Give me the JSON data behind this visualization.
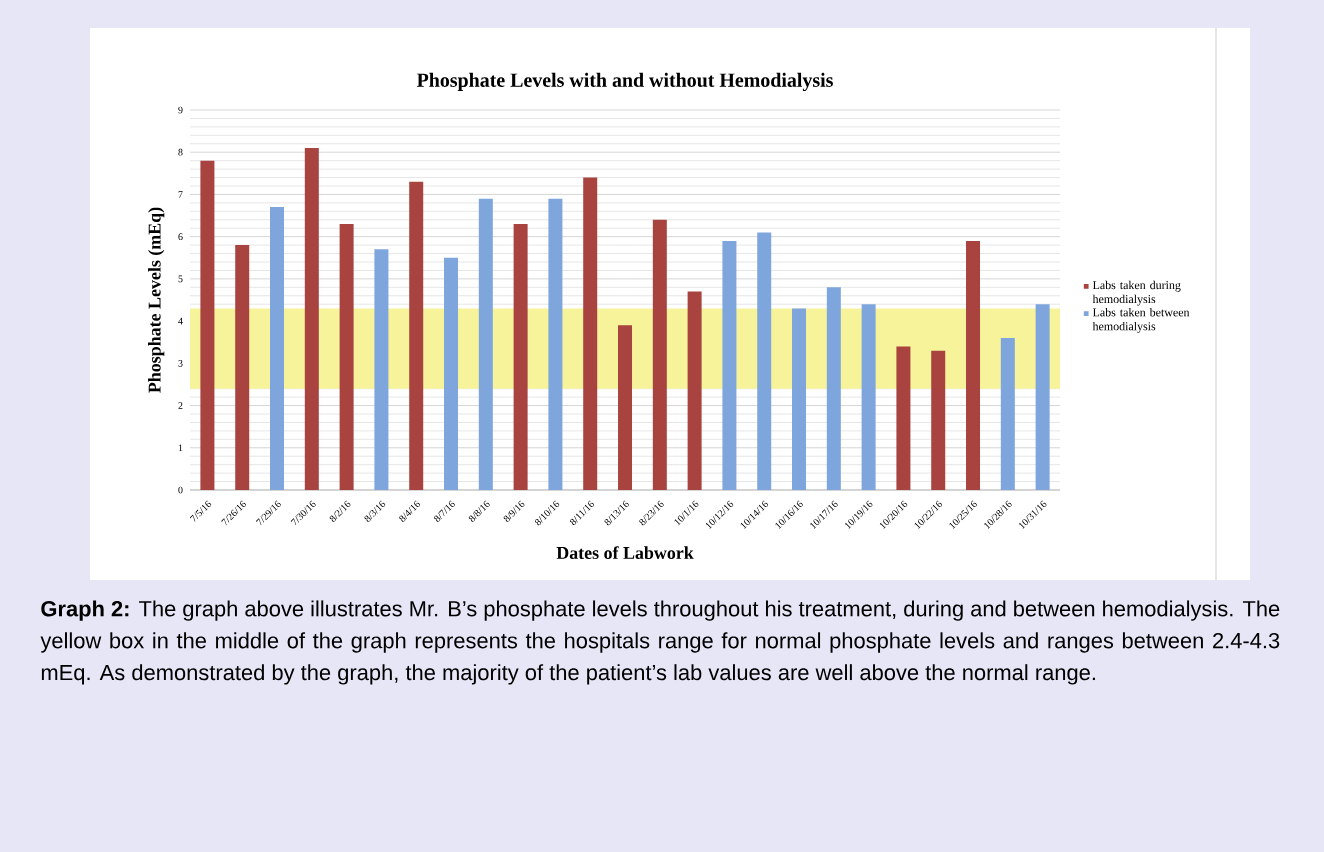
{
  "chart_data": {
    "type": "bar",
    "title": "Phosphate Levels with and without Hemodialysis",
    "xlabel": "Dates of Labwork",
    "ylabel": "Phosphate Levels (mEq)",
    "categories": [
      "7/5/16",
      "7/26/16",
      "7/29/16",
      "7/30/16",
      "8/2/16",
      "8/3/16",
      "8/4/16",
      "8/7/16",
      "8/8/16",
      "8/9/16",
      "8/10/16",
      "8/11/16",
      "8/13/16",
      "8/23/16",
      "10/1/16",
      "10/12/16",
      "10/14/16",
      "10/16/16",
      "10/17/16",
      "10/19/16",
      "10/20/16",
      "10/22/16",
      "10/25/16",
      "10/28/16",
      "10/31/16"
    ],
    "series": [
      {
        "name": "Labs taken during hemodialysis",
        "color": "#a8433f",
        "values": [
          7.8,
          5.8,
          null,
          8.1,
          6.3,
          null,
          7.3,
          null,
          null,
          6.3,
          null,
          7.4,
          3.9,
          6.4,
          4.7,
          null,
          null,
          null,
          null,
          null,
          3.4,
          3.3,
          5.9,
          null,
          null
        ]
      },
      {
        "name": "Labs taken between hemodialysis",
        "color": "#7ea6dc",
        "values": [
          null,
          null,
          6.7,
          null,
          null,
          5.7,
          null,
          5.5,
          6.9,
          null,
          6.9,
          null,
          null,
          null,
          null,
          5.9,
          6.1,
          4.3,
          4.8,
          4.4,
          null,
          null,
          null,
          3.6,
          4.4
        ]
      }
    ],
    "ylim": [
      0,
      9
    ],
    "yticks": [
      0,
      1,
      2,
      3,
      4,
      5,
      6,
      7,
      8,
      9
    ],
    "grid": "y",
    "legend": "right",
    "bands": [
      {
        "axis": "y",
        "from": 2.4,
        "to": 4.3,
        "color": "#f6f39a"
      }
    ],
    "annotations": [
      "**Graph 2:** The graph above illustrates Mr. B’s phosphate levels throughout his treatment, during and between hemodialysis. The yellow box in the middle of the graph represents the hospitals range for normal phosphate levels and ranges between 2.4-4.3 mEq. As demonstrated by the graph, the majority of the patient’s lab values are well above the normal range."
    ]
  }
}
